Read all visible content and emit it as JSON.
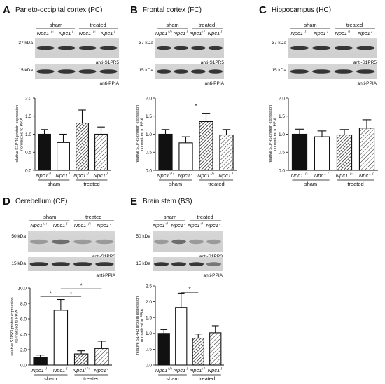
{
  "groups": {
    "sham": "sham",
    "treated": "treated"
  },
  "genotypes": [
    "Npc1",
    "Npc1"
  ],
  "genotype_sup": [
    "+/+",
    "-/-"
  ],
  "significance_mark": "*",
  "panels": [
    {
      "id": "A",
      "letter": "A",
      "title": "Parieto-occipital cortex (PC)",
      "blots": [
        {
          "kda": "37 kDa",
          "antibody": "anti-S1PR5"
        },
        {
          "kda": "15 kDa",
          "antibody": "anti-PPIA"
        }
      ],
      "ylabel_lines": [
        "relative S1PR5 protein expression",
        "normalized to PPIA"
      ],
      "chart_data": {
        "type": "bar",
        "categories": [
          "Npc1+/+ sham",
          "Npc1-/- sham",
          "Npc1+/+ treated",
          "Npc1-/- treated"
        ],
        "values": [
          1.0,
          0.77,
          1.31,
          1.0
        ],
        "errors": [
          0.13,
          0.23,
          0.36,
          0.2
        ],
        "ylim": [
          0,
          2.0
        ],
        "yticks": [
          0.0,
          0.5,
          1.0,
          1.5,
          2.0
        ],
        "tick_decimals": 1,
        "significance": []
      }
    },
    {
      "id": "B",
      "letter": "B",
      "title": "Frontal cortex (FC)",
      "blots": [
        {
          "kda": "37 kDa",
          "antibody": "anti-S1PR5"
        },
        {
          "kda": "15 kDa",
          "antibody": "anti-PPIA"
        }
      ],
      "ylabel_lines": [
        "relative S1PR5 protein expression",
        "normalized to PPIA"
      ],
      "chart_data": {
        "type": "bar",
        "categories": [
          "Npc1+/+ sham",
          "Npc1-/- sham",
          "Npc1+/+ treated",
          "Npc1-/- treated"
        ],
        "values": [
          1.0,
          0.76,
          1.35,
          0.98
        ],
        "errors": [
          0.13,
          0.17,
          0.23,
          0.15
        ],
        "ylim": [
          0,
          2.0
        ],
        "yticks": [
          0.0,
          0.5,
          1.0,
          1.5,
          2.0
        ],
        "tick_decimals": 1,
        "significance": [
          {
            "from": 1,
            "to": 2,
            "y": 1.7
          }
        ]
      }
    },
    {
      "id": "C",
      "letter": "C",
      "title": "Hippocampus (HC)",
      "blots": [
        {
          "kda": "37 kDa",
          "antibody": "anti-S1PR5"
        },
        {
          "kda": "15 kDa",
          "antibody": "anti-PPIA"
        }
      ],
      "ylabel_lines": [
        "relative S1PR5 protein expression",
        "normalized to PPIA"
      ],
      "chart_data": {
        "type": "bar",
        "categories": [
          "Npc1+/+ sham",
          "Npc1-/- sham",
          "Npc1+/+ treated",
          "Npc1-/- treated"
        ],
        "values": [
          1.0,
          0.93,
          0.98,
          1.17
        ],
        "errors": [
          0.14,
          0.16,
          0.15,
          0.23
        ],
        "ylim": [
          0,
          2.0
        ],
        "yticks": [
          0.0,
          0.5,
          1.0,
          1.5,
          2.0
        ],
        "tick_decimals": 1,
        "significance": []
      }
    },
    {
      "id": "D",
      "letter": "D",
      "title": "Cerebellum (CE)",
      "blots": [
        {
          "kda": "50 kDa",
          "antibody": "anti-S1PR3"
        },
        {
          "kda": "15 kDa",
          "antibody": "anti-PPIA"
        }
      ],
      "ylabel_lines": [
        "relative S1PR3 protein expression",
        "normalized to PPIA"
      ],
      "chart_data": {
        "type": "bar",
        "categories": [
          "Npc1+/+ sham",
          "Npc1-/- sham",
          "Npc1+/+ treated",
          "Npc1-/- treated"
        ],
        "values": [
          1.0,
          7.1,
          1.45,
          2.15
        ],
        "errors": [
          0.3,
          1.4,
          0.4,
          0.95
        ],
        "ylim": [
          0,
          10.0
        ],
        "yticks": [
          0.0,
          2.0,
          4.0,
          6.0,
          8.0,
          10.0
        ],
        "tick_decimals": 1,
        "significance": [
          {
            "from": 0,
            "to": 1,
            "y": 8.9
          },
          {
            "from": 1,
            "to": 2,
            "y": 8.9
          },
          {
            "from": 1,
            "to": 3,
            "y": 9.9
          }
        ]
      }
    },
    {
      "id": "E",
      "letter": "E",
      "title": "Brain stem (BS)",
      "blots": [
        {
          "kda": "50 kDa",
          "antibody": "anti-S1PR3"
        },
        {
          "kda": "15 kDa",
          "antibody": "anti-PPIA"
        }
      ],
      "ylabel_lines": [
        "relative S1PR3 protein expression",
        "normalized to PPIA"
      ],
      "chart_data": {
        "type": "bar",
        "categories": [
          "Npc1+/+ sham",
          "Npc1-/- sham",
          "Npc1+/+ treated",
          "Npc1-/- treated"
        ],
        "values": [
          1.0,
          1.82,
          0.85,
          1.02
        ],
        "errors": [
          0.12,
          0.45,
          0.13,
          0.22
        ],
        "ylim": [
          0,
          2.5
        ],
        "yticks": [
          0.0,
          0.5,
          1.0,
          1.5,
          2.0,
          2.5
        ],
        "tick_decimals": 1,
        "significance": [
          {
            "from": 1,
            "to": 2,
            "y": 2.3
          }
        ]
      }
    }
  ]
}
